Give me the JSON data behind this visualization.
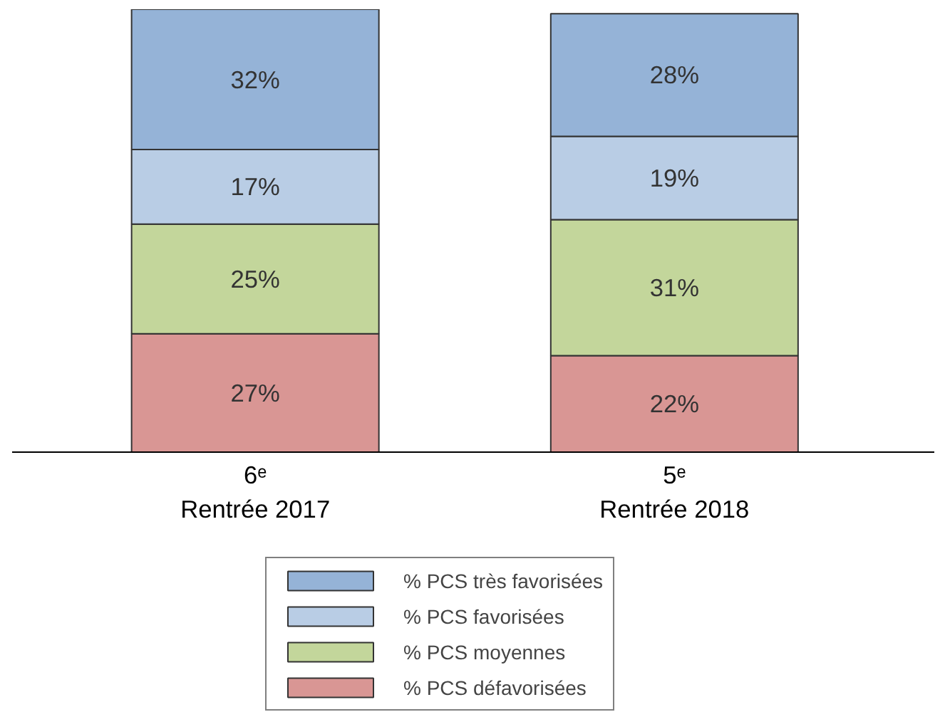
{
  "chart_data": {
    "type": "bar",
    "stacked": true,
    "categories": [
      "6ᵉ\nRentrée 2017",
      "5ᵉ\nRentrée 2018"
    ],
    "series": [
      {
        "name": "% PCS défavorisées",
        "color": "#d99694",
        "values": [
          27,
          22
        ],
        "value_labels": [
          "27%",
          "22%"
        ]
      },
      {
        "name": "% PCS moyennes",
        "color": "#c3d69b",
        "values": [
          25,
          31
        ],
        "value_labels": [
          "25%",
          "31%"
        ]
      },
      {
        "name": "% PCS favorisées",
        "color": "#b9cde5",
        "values": [
          17,
          19
        ],
        "value_labels": [
          "17%",
          "19%"
        ]
      },
      {
        "name": "% PCS très favorisées",
        "color": "#95b3d7",
        "values": [
          32,
          28
        ],
        "value_labels": [
          "32%",
          "28%"
        ]
      }
    ],
    "legend": "bottom"
  }
}
